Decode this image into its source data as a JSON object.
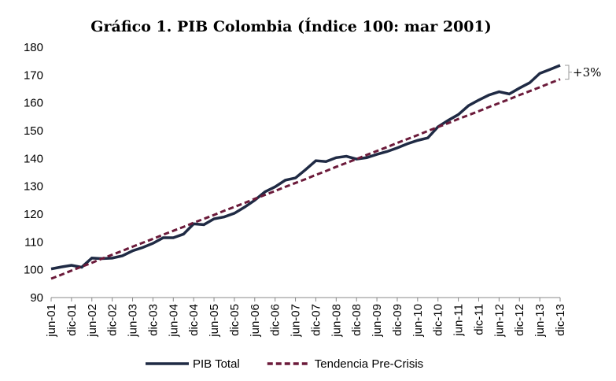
{
  "chart_data": {
    "type": "line",
    "title": "Gráfico 1. PIB Colombia (Índice 100: mar 2001)",
    "categories": [
      "jun-01",
      null,
      "dic-01",
      null,
      "jun-02",
      null,
      "dic-02",
      null,
      "jun-03",
      null,
      "dic-03",
      null,
      "jun-04",
      null,
      "dic-04",
      null,
      "jun-05",
      null,
      "dic-05",
      null,
      "jun-06",
      null,
      "dic-06",
      null,
      "jun-07",
      null,
      "dic-07",
      null,
      "jun-08",
      null,
      "dic-08",
      null,
      "jun-09",
      null,
      "dic-09",
      null,
      "jun-10",
      null,
      "dic-10",
      null,
      "jun-11",
      null,
      "dic-11",
      null,
      "jun-12",
      null,
      "dic-12",
      null,
      "jun-13",
      null,
      "dic-13"
    ],
    "series": [
      {
        "name": "PIB Total",
        "color": "#1f2a44",
        "dash": false,
        "values": [
          100.3,
          101.0,
          101.6,
          100.9,
          104.2,
          104.0,
          104.2,
          105.0,
          106.8,
          108.0,
          109.5,
          111.5,
          111.5,
          112.8,
          116.5,
          116.2,
          118.3,
          119.0,
          120.3,
          122.5,
          125.0,
          128.0,
          129.8,
          132.2,
          133.0,
          136.0,
          139.2,
          138.9,
          140.3,
          140.8,
          139.8,
          140.3,
          141.5,
          142.5,
          143.8,
          145.3,
          146.5,
          147.4,
          151.4,
          153.7,
          155.8,
          159.0,
          161.0,
          162.8,
          164.0,
          163.2,
          165.3,
          167.2,
          170.6,
          172.0,
          173.5
        ]
      },
      {
        "name": "Tendencia Pre-Crisis",
        "color": "#6b1a3a",
        "dash": true,
        "values": [
          96.8,
          98.2,
          99.7,
          101.1,
          102.5,
          104.0,
          105.4,
          106.8,
          108.3,
          109.7,
          111.1,
          112.6,
          114.0,
          115.4,
          116.9,
          118.3,
          119.7,
          121.2,
          122.6,
          124.0,
          125.5,
          126.9,
          128.3,
          129.8,
          131.2,
          132.6,
          134.1,
          135.5,
          137.0,
          138.4,
          139.8,
          141.3,
          142.7,
          144.1,
          145.6,
          147.0,
          148.4,
          149.9,
          151.3,
          152.7,
          154.2,
          155.6,
          157.0,
          158.5,
          159.9,
          161.3,
          162.8,
          164.2,
          165.6,
          167.1,
          168.5
        ]
      }
    ],
    "annotation": "+3%",
    "ylim": [
      90,
      180
    ],
    "yticks": [
      90,
      100,
      110,
      120,
      130,
      140,
      150,
      160,
      170,
      180
    ],
    "grid": false,
    "legend": "bottom"
  }
}
